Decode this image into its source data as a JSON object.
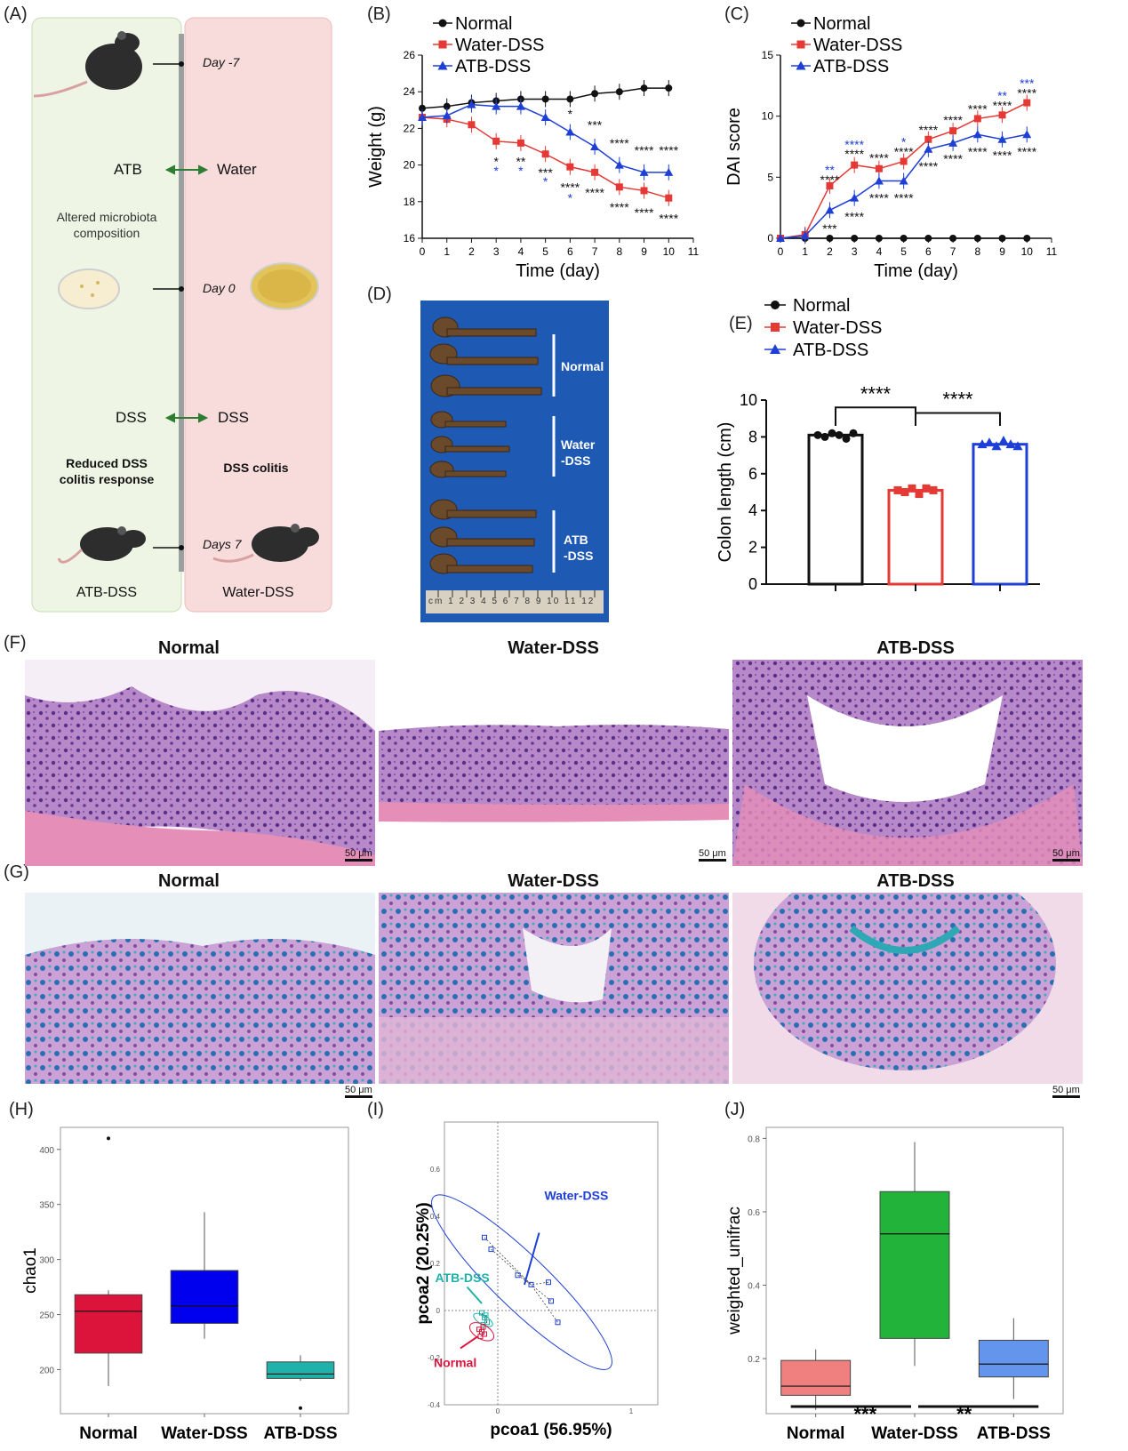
{
  "panels": {
    "A": "(A)",
    "B": "(B)",
    "C": "(C)",
    "D": "(D)",
    "E": "(E)",
    "F": "(F)",
    "G": "(G)",
    "H": "(H)",
    "I": "(I)",
    "J": "(J)"
  },
  "panel_a": {
    "day_m7": "Day -7",
    "day_0": "Day 0",
    "day_7": "Days 7",
    "atb": "ATB",
    "water": "Water",
    "altered_1": "Altered microbiota",
    "altered_2": "composition",
    "dss_left": "DSS",
    "dss_right": "DSS",
    "reduced_1": "Reduced DSS",
    "reduced_2": "colitis response",
    "dss_colitis": "DSS colitis",
    "atb_dss": "ATB-DSS",
    "water_dss": "Water-DSS",
    "colors": {
      "left_bg": "#eef5e4",
      "right_bg": "#f8dcdc",
      "arrow": "#2e7d32"
    }
  },
  "legend": {
    "normal": "Normal",
    "water": "Water-DSS",
    "atb": "ATB-DSS"
  },
  "panel_d": {
    "normal": "Normal",
    "water_1": "Water",
    "water_2": "-DSS",
    "atb_1": "ATB",
    "atb_2": "-DSS",
    "ruler": "cm 1 2 3 4 5 6 7 8 9 10 11 12",
    "bg": "#1e59b3"
  },
  "histology": {
    "f_titles": [
      "Normal",
      "Water-DSS",
      "ATB-DSS"
    ],
    "g_titles": [
      "Normal",
      "Water-DSS",
      "ATB-DSS"
    ],
    "scale": "50 μm"
  },
  "chart_data": [
    {
      "id": "B",
      "type": "line",
      "xlabel": "Time (day)",
      "ylabel": "Weight (g)",
      "xlim": [
        0,
        11
      ],
      "ylim": [
        16,
        26
      ],
      "xticks": [
        "0",
        "1",
        "2",
        "3",
        "4",
        "5",
        "6",
        "7",
        "8",
        "9",
        "10",
        "11"
      ],
      "yticks": [
        "16",
        "18",
        "20",
        "22",
        "24",
        "26"
      ],
      "series": [
        {
          "name": "Normal",
          "color": "#111111",
          "marker": "circle",
          "x": [
            0,
            1,
            2,
            3,
            4,
            5,
            6,
            7,
            8,
            9,
            10
          ],
          "y": [
            23.1,
            23.2,
            23.4,
            23.5,
            23.6,
            23.6,
            23.6,
            23.9,
            24.0,
            24.2,
            24.2
          ]
        },
        {
          "name": "Water-DSS",
          "color": "#e53935",
          "marker": "square",
          "x": [
            0,
            1,
            2,
            3,
            4,
            5,
            6,
            7,
            8,
            9,
            10
          ],
          "y": [
            22.6,
            22.5,
            22.2,
            21.3,
            21.2,
            20.6,
            19.9,
            19.6,
            18.8,
            18.6,
            18.2
          ]
        },
        {
          "name": "ATB-DSS",
          "color": "#1e3fd6",
          "marker": "triangle",
          "x": [
            0,
            1,
            2,
            3,
            4,
            5,
            6,
            7,
            8,
            9,
            10
          ],
          "y": [
            22.6,
            22.7,
            23.3,
            23.2,
            23.2,
            22.6,
            21.8,
            21.0,
            20.0,
            19.6,
            19.6
          ]
        }
      ],
      "sig": [
        {
          "x": 3,
          "y": 20.2,
          "t": "*",
          "c": "#111"
        },
        {
          "x": 3,
          "y": 19.7,
          "t": "*",
          "c": "#1e3fd6"
        },
        {
          "x": 4,
          "y": 20.2,
          "t": "**",
          "c": "#111"
        },
        {
          "x": 4,
          "y": 19.7,
          "t": "*",
          "c": "#1e3fd6"
        },
        {
          "x": 5,
          "y": 19.6,
          "t": "***",
          "c": "#111"
        },
        {
          "x": 5,
          "y": 19.1,
          "t": "*",
          "c": "#1e3fd6"
        },
        {
          "x": 6,
          "y": 22.8,
          "t": "*",
          "c": "#111"
        },
        {
          "x": 6,
          "y": 18.8,
          "t": "****",
          "c": "#111"
        },
        {
          "x": 6,
          "y": 18.2,
          "t": "*",
          "c": "#1e3fd6"
        },
        {
          "x": 7,
          "y": 22.2,
          "t": "***",
          "c": "#111"
        },
        {
          "x": 7,
          "y": 18.5,
          "t": "****",
          "c": "#111"
        },
        {
          "x": 8,
          "y": 21.2,
          "t": "****",
          "c": "#111"
        },
        {
          "x": 8,
          "y": 17.7,
          "t": "****",
          "c": "#111"
        },
        {
          "x": 9,
          "y": 20.8,
          "t": "****",
          "c": "#111"
        },
        {
          "x": 9,
          "y": 17.4,
          "t": "****",
          "c": "#111"
        },
        {
          "x": 10,
          "y": 20.8,
          "t": "****",
          "c": "#111"
        },
        {
          "x": 10,
          "y": 17.1,
          "t": "****",
          "c": "#111"
        }
      ]
    },
    {
      "id": "C",
      "type": "line",
      "xlabel": "Time (day)",
      "ylabel": "DAI score",
      "xlim": [
        0,
        11
      ],
      "ylim": [
        0,
        15
      ],
      "xticks": [
        "0",
        "1",
        "2",
        "3",
        "4",
        "5",
        "6",
        "7",
        "8",
        "9",
        "10",
        "11"
      ],
      "yticks": [
        "0",
        "5",
        "10",
        "15"
      ],
      "series": [
        {
          "name": "Normal",
          "color": "#111111",
          "marker": "circle",
          "x": [
            0,
            1,
            2,
            3,
            4,
            5,
            6,
            7,
            8,
            9,
            10
          ],
          "y": [
            0,
            0,
            0,
            0,
            0,
            0,
            0,
            0,
            0,
            0,
            0
          ]
        },
        {
          "name": "Water-DSS",
          "color": "#e53935",
          "marker": "square",
          "x": [
            0,
            1,
            2,
            3,
            4,
            5,
            6,
            7,
            8,
            9,
            10
          ],
          "y": [
            0,
            0.3,
            4.3,
            6.0,
            5.7,
            6.3,
            8.1,
            8.8,
            9.8,
            10.1,
            11.1
          ]
        },
        {
          "name": "ATB-DSS",
          "color": "#1e3fd6",
          "marker": "triangle",
          "x": [
            0,
            1,
            2,
            3,
            4,
            5,
            6,
            7,
            8,
            9,
            10
          ],
          "y": [
            0,
            0.2,
            2.3,
            3.3,
            4.7,
            4.7,
            7.3,
            7.8,
            8.5,
            8.1,
            8.5
          ]
        }
      ],
      "sig": [
        {
          "x": 2,
          "y": 5.6,
          "t": "**",
          "c": "#1e3fd6"
        },
        {
          "x": 2,
          "y": 4.8,
          "t": "****",
          "c": "#111"
        },
        {
          "x": 2,
          "y": 0.8,
          "t": "***",
          "c": "#111"
        },
        {
          "x": 3,
          "y": 7.7,
          "t": "****",
          "c": "#1e3fd6"
        },
        {
          "x": 3,
          "y": 6.9,
          "t": "****",
          "c": "#111"
        },
        {
          "x": 3,
          "y": 1.8,
          "t": "****",
          "c": "#111"
        },
        {
          "x": 4,
          "y": 6.6,
          "t": "****",
          "c": "#111"
        },
        {
          "x": 4,
          "y": 3.3,
          "t": "****",
          "c": "#111"
        },
        {
          "x": 5,
          "y": 7.9,
          "t": "*",
          "c": "#1e3fd6"
        },
        {
          "x": 5,
          "y": 7.1,
          "t": "****",
          "c": "#111"
        },
        {
          "x": 5,
          "y": 3.3,
          "t": "****",
          "c": "#111"
        },
        {
          "x": 6,
          "y": 8.9,
          "t": "****",
          "c": "#111"
        },
        {
          "x": 6,
          "y": 5.9,
          "t": "****",
          "c": "#111"
        },
        {
          "x": 7,
          "y": 9.7,
          "t": "****",
          "c": "#111"
        },
        {
          "x": 7,
          "y": 6.5,
          "t": "****",
          "c": "#111"
        },
        {
          "x": 8,
          "y": 10.6,
          "t": "****",
          "c": "#111"
        },
        {
          "x": 8,
          "y": 7.1,
          "t": "****",
          "c": "#111"
        },
        {
          "x": 9,
          "y": 11.7,
          "t": "**",
          "c": "#1e3fd6"
        },
        {
          "x": 9,
          "y": 10.9,
          "t": "****",
          "c": "#111"
        },
        {
          "x": 9,
          "y": 6.8,
          "t": "****",
          "c": "#111"
        },
        {
          "x": 10,
          "y": 12.7,
          "t": "***",
          "c": "#1e3fd6"
        },
        {
          "x": 10,
          "y": 11.9,
          "t": "****",
          "c": "#111"
        },
        {
          "x": 10,
          "y": 7.1,
          "t": "****",
          "c": "#111"
        }
      ]
    },
    {
      "id": "E",
      "type": "bar",
      "ylabel": "Colon length (cm)",
      "ylim": [
        0,
        10
      ],
      "yticks": [
        "0",
        "2",
        "4",
        "6",
        "8",
        "10"
      ],
      "categories": [
        "Normal",
        "Water-DSS",
        "ATB-DSS"
      ],
      "values": [
        8.1,
        5.1,
        7.6
      ],
      "colors": [
        "#111111",
        "#e53935",
        "#1e3fd6"
      ],
      "points": [
        [
          8.1,
          8.0,
          8.2,
          8.1,
          7.9,
          8.2
        ],
        [
          5.1,
          5.0,
          5.2,
          4.9,
          5.2,
          5.1
        ],
        [
          7.6,
          7.7,
          7.5,
          7.8,
          7.6,
          7.5
        ]
      ],
      "sig": [
        "****",
        "****"
      ]
    },
    {
      "id": "H",
      "type": "box",
      "ylabel": "chao1",
      "ylim": [
        160,
        420
      ],
      "yticks": [
        "200",
        "250",
        "300",
        "350",
        "400"
      ],
      "categories": [
        "Normal",
        "Water-DSS",
        "ATB-DSS"
      ],
      "colors": [
        "#dc143c",
        "#0000ee",
        "#20b2aa"
      ],
      "boxes": [
        {
          "min": 185,
          "q1": 215,
          "median": 253,
          "q3": 268,
          "max": 272,
          "outliers": [
            410
          ]
        },
        {
          "min": 228,
          "q1": 242,
          "median": 258,
          "q3": 290,
          "max": 343,
          "outliers": []
        },
        {
          "min": 190,
          "q1": 192,
          "median": 196,
          "q3": 207,
          "max": 213,
          "outliers": [
            165
          ]
        }
      ]
    },
    {
      "id": "I",
      "type": "scatter",
      "xlabel": "pcoa1 (56.95%)",
      "ylabel": "pcoa2 (20.25%)",
      "xlim": [
        -0.4,
        1.2
      ],
      "ylim": [
        -0.4,
        0.8
      ],
      "xticks": [
        "0",
        "1"
      ],
      "yticks": [
        "-0.4",
        "-0.2",
        "0",
        "0.2",
        "0.4",
        "0.6"
      ],
      "groups": [
        {
          "name": "Water-DSS",
          "color": "#1e3fd6",
          "points": [
            [
              -0.1,
              0.31
            ],
            [
              -0.05,
              0.26
            ],
            [
              0.15,
              0.15
            ],
            [
              0.25,
              0.11
            ],
            [
              0.38,
              0.12
            ],
            [
              0.4,
              0.04
            ],
            [
              0.45,
              -0.05
            ]
          ]
        },
        {
          "name": "ATB-DSS",
          "color": "#20b2aa",
          "points": [
            [
              -0.12,
              -0.01
            ],
            [
              -0.1,
              -0.03
            ],
            [
              -0.08,
              -0.05
            ],
            [
              -0.11,
              -0.06
            ],
            [
              -0.09,
              -0.02
            ]
          ]
        },
        {
          "name": "Normal",
          "color": "#dc143c",
          "points": [
            [
              -0.14,
              -0.08
            ],
            [
              -0.12,
              -0.09
            ],
            [
              -0.1,
              -0.1
            ],
            [
              -0.13,
              -0.11
            ],
            [
              -0.11,
              -0.07
            ]
          ]
        }
      ]
    },
    {
      "id": "J",
      "type": "box",
      "ylabel": "weighted_unifrac",
      "ylim": [
        0.05,
        0.83
      ],
      "yticks": [
        "0.2",
        "0.4",
        "0.6",
        "0.8"
      ],
      "categories": [
        "Normal",
        "Water-DSS",
        "ATB-DSS"
      ],
      "colors": [
        "#f08080",
        "#22b33a",
        "#6495ed"
      ],
      "boxes": [
        {
          "min": 0.06,
          "q1": 0.1,
          "median": 0.125,
          "q3": 0.195,
          "max": 0.225,
          "outliers": []
        },
        {
          "min": 0.18,
          "q1": 0.255,
          "median": 0.54,
          "q3": 0.655,
          "max": 0.79,
          "outliers": []
        },
        {
          "min": 0.09,
          "q1": 0.15,
          "median": 0.185,
          "q3": 0.25,
          "max": 0.31,
          "outliers": []
        }
      ],
      "sig": [
        "***",
        "**"
      ]
    }
  ]
}
